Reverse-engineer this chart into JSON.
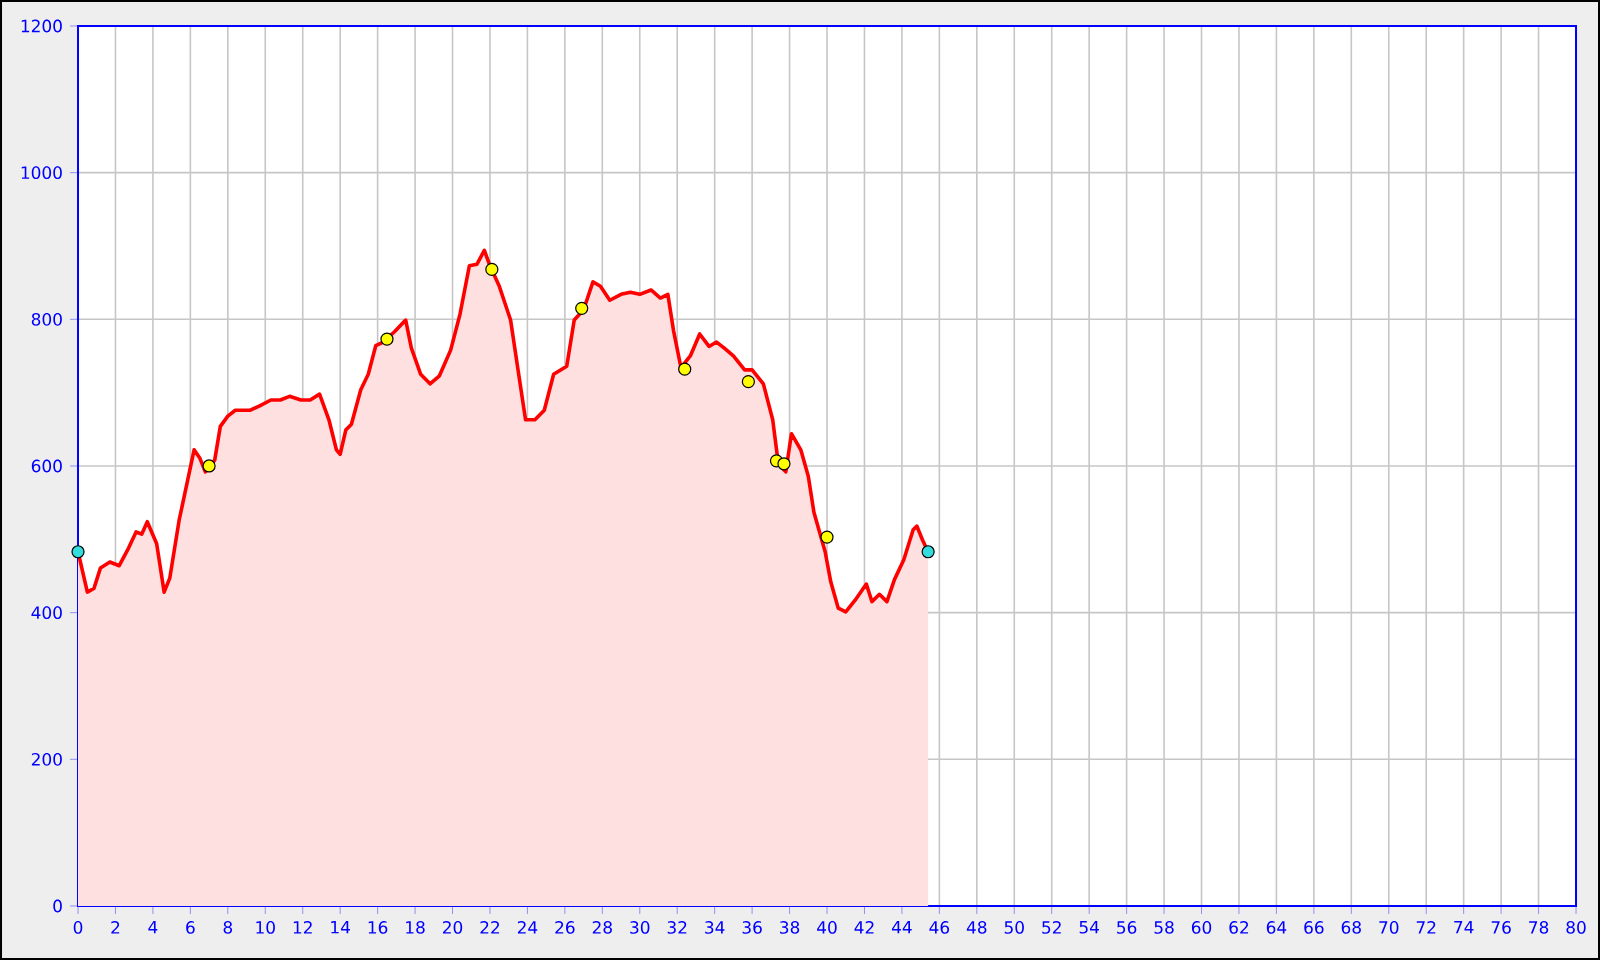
{
  "chart_data": {
    "type": "area",
    "x": [
      0,
      0.5,
      0.85,
      1.2,
      1.7,
      2.2,
      2.7,
      3.1,
      3.4,
      3.7,
      4.2,
      4.6,
      4.9,
      5.4,
      6.2,
      6.5,
      6.8,
      7.3,
      7.6,
      8.0,
      8.4,
      9.2,
      9.7,
      10.3,
      10.8,
      11.3,
      11.9,
      12.4,
      12.9,
      13.4,
      13.8,
      14.0,
      14.3,
      14.6,
      15.1,
      15.5,
      15.9,
      16.3,
      16.9,
      17.5,
      17.8,
      18.3,
      18.8,
      19.3,
      19.9,
      20.4,
      20.9,
      21.3,
      21.7,
      22.0,
      22.5,
      23.1,
      23.5,
      23.9,
      24.4,
      24.9,
      25.4,
      26.1,
      26.5,
      27.0,
      27.5,
      27.9,
      28.4,
      29.0,
      29.5,
      30.0,
      30.6,
      31.1,
      31.5,
      31.8,
      32.2,
      32.7,
      33.2,
      33.7,
      34.1,
      34.5,
      35.0,
      35.6,
      36.0,
      36.6,
      37.1,
      37.4,
      37.8,
      38.1,
      38.6,
      39.0,
      39.3,
      39.9,
      40.2,
      40.6,
      41.0,
      41.5,
      42.1,
      42.4,
      42.8,
      43.2,
      43.6,
      44.1,
      44.6,
      44.8,
      45.1,
      45.4
    ],
    "series": [
      {
        "color": "#ff0000",
        "values": [
          483,
          428,
          433,
          461,
          469,
          464,
          488,
          510,
          507,
          524,
          494,
          428,
          447,
          526,
          622,
          611,
          592,
          608,
          654,
          668,
          676,
          676,
          682,
          690,
          690,
          695,
          690,
          690,
          698,
          663,
          622,
          616,
          649,
          657,
          704,
          725,
          764,
          769,
          783,
          799,
          761,
          725,
          712,
          723,
          758,
          807,
          873,
          875,
          894,
          873,
          845,
          799,
          731,
          663,
          663,
          676,
          725,
          736,
          799,
          813,
          851,
          845,
          826,
          834,
          837,
          834,
          840,
          829,
          834,
          785,
          734,
          750,
          780,
          763,
          769,
          761,
          750,
          731,
          731,
          712,
          663,
          603,
          592,
          644,
          622,
          586,
          537,
          483,
          442,
          406,
          401,
          417,
          439,
          415,
          425,
          415,
          445,
          472,
          513,
          518,
          499,
          483
        ]
      },
      {
        "type": "scatter",
        "color": "#ffff00",
        "marker": "circle",
        "x": [
          7.0,
          16.5,
          22.1,
          26.9,
          32.4,
          35.8,
          37.3,
          37.7,
          40.0
        ],
        "values": [
          600,
          773,
          868,
          815,
          732,
          715,
          607,
          603,
          503
        ]
      },
      {
        "type": "scatter",
        "color": "#33dddd",
        "marker": "circle",
        "x": [
          0,
          45.4
        ],
        "values": [
          483,
          483
        ]
      }
    ],
    "xlim": [
      0,
      80
    ],
    "ylim": [
      0,
      1200
    ],
    "xticks": [
      0,
      2,
      4,
      6,
      8,
      10,
      12,
      14,
      16,
      18,
      20,
      22,
      24,
      26,
      28,
      30,
      32,
      34,
      36,
      38,
      40,
      42,
      44,
      46,
      48,
      50,
      52,
      54,
      56,
      58,
      60,
      62,
      64,
      66,
      68,
      70,
      72,
      74,
      76,
      78,
      80
    ],
    "yticks": [
      0,
      200,
      400,
      600,
      800,
      1000,
      1200
    ],
    "grid": true
  }
}
